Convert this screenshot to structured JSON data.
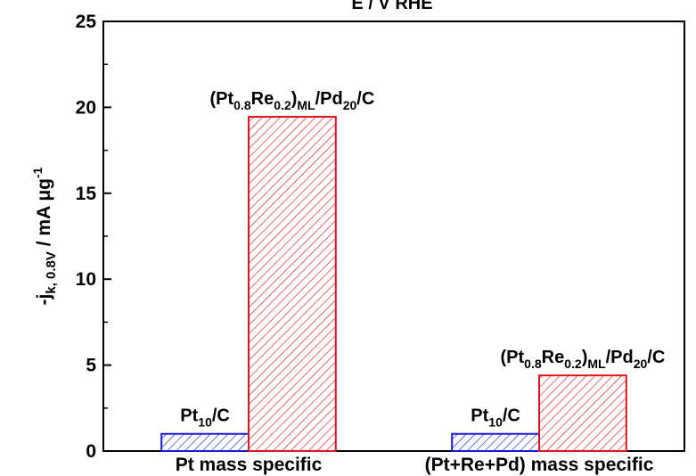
{
  "chart_data": {
    "type": "bar",
    "title": "E / V RHE",
    "ylabel": {
      "prefix": "-j",
      "subscript": "k, 0.8V",
      "units_base": "  /  mA μg",
      "units_exp": "-1"
    },
    "ylim": [
      0,
      25
    ],
    "y_ticks": [
      0,
      5,
      10,
      15,
      20,
      25
    ],
    "categories": [
      "Pt mass specific",
      "(Pt+Re+Pd) mass specific"
    ],
    "series": [
      {
        "label_parts": [
          {
            "t": "Pt",
            "sub": false
          },
          {
            "t": "10",
            "sub": true
          },
          {
            "t": "/C",
            "sub": false
          }
        ],
        "color": "#1a1adb",
        "pattern": "hatch",
        "values": [
          1.0,
          1.0
        ]
      },
      {
        "label_parts": [
          {
            "t": "(Pt",
            "sub": false
          },
          {
            "t": "0.8",
            "sub": true
          },
          {
            "t": "Re",
            "sub": false
          },
          {
            "t": "0.2",
            "sub": true
          },
          {
            "t": ")",
            "sub": false
          },
          {
            "t": "ML",
            "sub": true
          },
          {
            "t": "/Pd",
            "sub": false
          },
          {
            "t": "20",
            "sub": true
          },
          {
            "t": "/C",
            "sub": false
          }
        ],
        "color": "#e0141e",
        "pattern": "hatch",
        "values": [
          19.45,
          4.4
        ]
      }
    ],
    "grid": false,
    "legend": "none"
  }
}
